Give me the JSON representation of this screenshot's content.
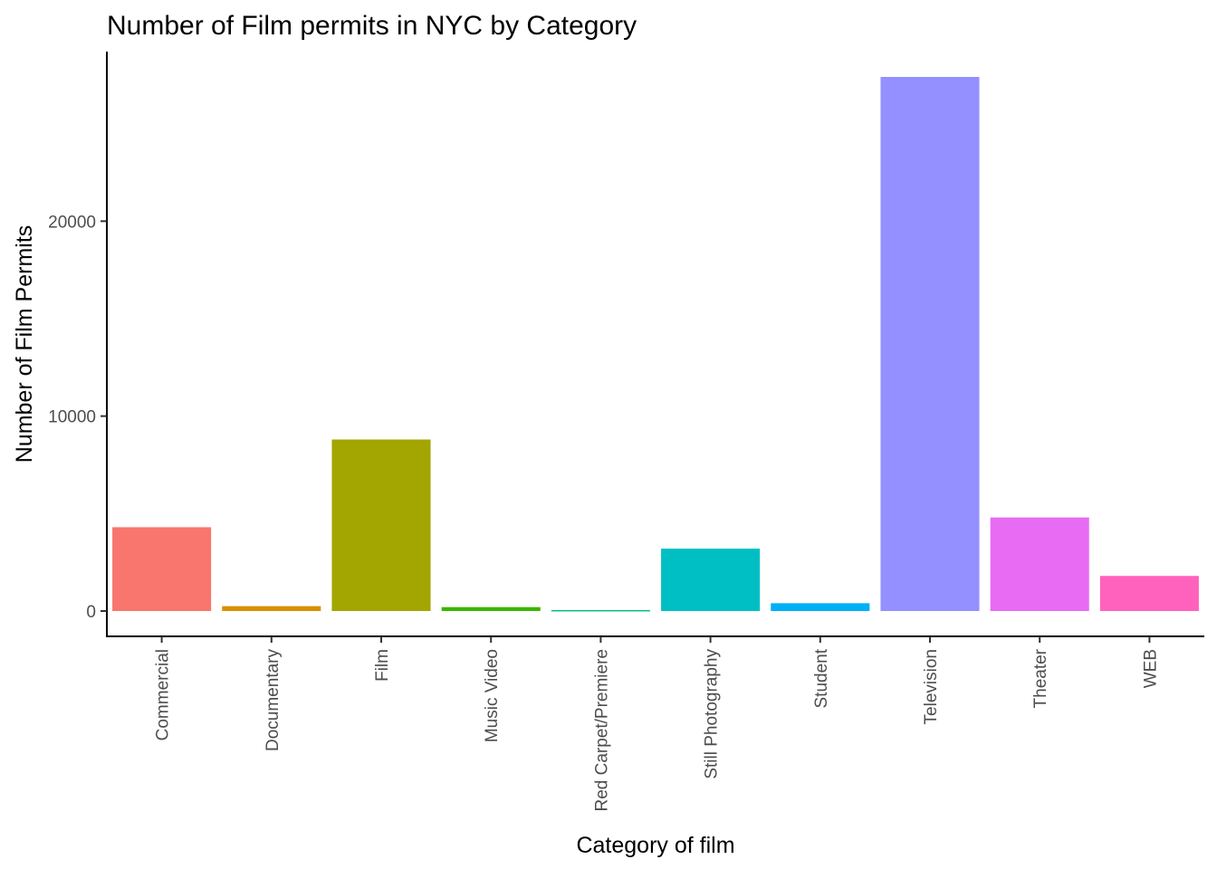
{
  "chart_data": {
    "type": "bar",
    "title": "Number of Film permits in NYC by Category",
    "xlabel": "Category of film",
    "ylabel": "Number of Film Permits",
    "categories": [
      "Commercial",
      "Documentary",
      "Film",
      "Music Video",
      "Red Carpet/Premiere",
      "Still Photography",
      "Student",
      "Television",
      "Theater",
      "WEB"
    ],
    "values": [
      4300,
      250,
      8800,
      200,
      50,
      3200,
      400,
      27400,
      4800,
      1800
    ],
    "colors": [
      "#F8766D",
      "#D89000",
      "#A3A500",
      "#39B600",
      "#00BF7D",
      "#00BFC4",
      "#00B0F6",
      "#9590FF",
      "#E76BF3",
      "#FF62BC"
    ],
    "yticks": [
      0,
      10000,
      20000
    ],
    "ylim": [
      -1300,
      28700
    ],
    "grid": false,
    "legend": "none"
  }
}
